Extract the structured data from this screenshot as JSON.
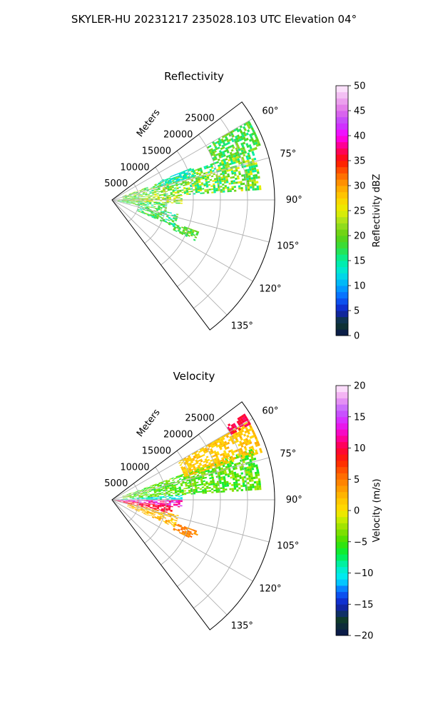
{
  "figure_title": "SKYLER-HU  20231217  235028.103 UTC Elevation 04°",
  "chart_data": [
    {
      "type": "heatmap",
      "title": "Reflectivity",
      "coordinate_system": "polar sector (azimuth vs range)",
      "range_axis_label": "Meters",
      "range_ticks": [
        5000,
        10000,
        15000,
        20000,
        25000
      ],
      "range_tick_labels": [
        "5000",
        "10000",
        "15000",
        "20000",
        "25000"
      ],
      "range_lim": [
        0,
        30000
      ],
      "azimuth_lim_deg": [
        53,
        143
      ],
      "azimuth_ticks_deg": [
        60,
        75,
        90,
        105,
        120,
        135
      ],
      "azimuth_tick_labels": [
        "60°",
        "75°",
        "90°",
        "105°",
        "120°",
        "135°"
      ],
      "grid": true,
      "colorbar": {
        "label": "Reflectivity dBZ",
        "vmin": 0,
        "vmax": 50,
        "ticks": [
          0,
          5,
          10,
          15,
          20,
          25,
          30,
          35,
          40,
          45,
          50
        ],
        "tick_labels": [
          "0",
          "5",
          "10",
          "15",
          "20",
          "25",
          "30",
          "35",
          "40",
          "45",
          "50"
        ],
        "stops": [
          [
            0,
            "#0a1450"
          ],
          [
            2.5,
            "#0f3a2a"
          ],
          [
            5,
            "#1020c0"
          ],
          [
            7.5,
            "#0a60ff"
          ],
          [
            10,
            "#00aaff"
          ],
          [
            12.5,
            "#00e5e0"
          ],
          [
            15,
            "#00f0a0"
          ],
          [
            17.5,
            "#30e040"
          ],
          [
            20,
            "#60d010"
          ],
          [
            22.5,
            "#a0e020"
          ],
          [
            25,
            "#e8f000"
          ],
          [
            27.5,
            "#ffd000"
          ],
          [
            30,
            "#ffa000"
          ],
          [
            32.5,
            "#ff6000"
          ],
          [
            35,
            "#ff1000"
          ],
          [
            37.5,
            "#ff0070"
          ],
          [
            40,
            "#ff00ff"
          ],
          [
            42.5,
            "#c040ff"
          ],
          [
            45,
            "#e070e8"
          ],
          [
            47.5,
            "#f0b0f0"
          ],
          [
            50,
            "#fff0ff"
          ]
        ]
      },
      "echo_regions": [
        {
          "az": [
            70,
            86
          ],
          "r": [
            2000,
            27500
          ],
          "value": [
            14,
            26
          ]
        },
        {
          "az": [
            86,
            93
          ],
          "r": [
            0,
            13000
          ],
          "value": [
            17,
            27
          ]
        },
        {
          "az": [
            93,
            102
          ],
          "r": [
            1000,
            10000
          ],
          "value": [
            13,
            22
          ]
        },
        {
          "az": [
            102,
            113
          ],
          "r": [
            5000,
            12500
          ],
          "value": [
            12,
            22
          ]
        },
        {
          "az": [
            110,
            116
          ],
          "r": [
            12500,
            17000
          ],
          "value": [
            16,
            22
          ]
        },
        {
          "az": [
            60,
            70
          ],
          "r": [
            20000,
            29000
          ],
          "value": [
            15,
            22
          ]
        },
        {
          "az": [
            68,
            74
          ],
          "r": [
            9000,
            16000
          ],
          "value": [
            11,
            16
          ]
        }
      ]
    },
    {
      "type": "heatmap",
      "title": "Velocity",
      "coordinate_system": "polar sector (azimuth vs range)",
      "range_axis_label": "Meters",
      "range_ticks": [
        5000,
        10000,
        15000,
        20000,
        25000
      ],
      "range_tick_labels": [
        "5000",
        "10000",
        "15000",
        "20000",
        "25000"
      ],
      "range_lim": [
        0,
        30000
      ],
      "azimuth_lim_deg": [
        53,
        143
      ],
      "azimuth_ticks_deg": [
        60,
        75,
        90,
        105,
        120,
        135
      ],
      "azimuth_tick_labels": [
        "60°",
        "75°",
        "90°",
        "105°",
        "120°",
        "135°"
      ],
      "grid": true,
      "colorbar": {
        "label": "Velocity (m/s)",
        "vmin": -20,
        "vmax": 20,
        "ticks": [
          -20,
          -15,
          -10,
          -5,
          0,
          5,
          10,
          15,
          20
        ],
        "tick_labels": [
          "−20",
          "−15",
          "−10",
          "−5",
          "0",
          "5",
          "10",
          "15",
          "20"
        ],
        "stops": [
          [
            -20,
            "#0a1450"
          ],
          [
            -17.5,
            "#0f3a2a"
          ],
          [
            -15,
            "#1020c0"
          ],
          [
            -13,
            "#0a60ff"
          ],
          [
            -11,
            "#00e8ff"
          ],
          [
            -9,
            "#00f0c0"
          ],
          [
            -7,
            "#00f040"
          ],
          [
            -5,
            "#40e000"
          ],
          [
            -3,
            "#90e000"
          ],
          [
            -1,
            "#d8f000"
          ],
          [
            0,
            "#ffe000"
          ],
          [
            2,
            "#ffc000"
          ],
          [
            4,
            "#ff9000"
          ],
          [
            6,
            "#ff6000"
          ],
          [
            8,
            "#ff2000"
          ],
          [
            10,
            "#ff0040"
          ],
          [
            12,
            "#ff00b0"
          ],
          [
            14,
            "#e020ff"
          ],
          [
            16,
            "#c060ff"
          ],
          [
            18,
            "#f0a0f0"
          ],
          [
            20,
            "#fff0ff"
          ]
        ]
      },
      "echo_regions": [
        {
          "az": [
            70,
            86
          ],
          "r": [
            2000,
            27500
          ],
          "value": [
            -7,
            -2
          ]
        },
        {
          "az": [
            60,
            72
          ],
          "r": [
            14000,
            29000
          ],
          "value": [
            0,
            3
          ]
        },
        {
          "az": [
            86,
            90
          ],
          "r": [
            0,
            13000
          ],
          "value": [
            -12,
            -8
          ]
        },
        {
          "az": [
            90,
            96
          ],
          "r": [
            0,
            13000
          ],
          "value": [
            10,
            16
          ]
        },
        {
          "az": [
            96,
            103
          ],
          "r": [
            0,
            11000
          ],
          "value": [
            8,
            11
          ]
        },
        {
          "az": [
            103,
            113
          ],
          "r": [
            3000,
            12500
          ],
          "value": [
            0,
            4
          ]
        },
        {
          "az": [
            110,
            116
          ],
          "r": [
            12500,
            17000
          ],
          "value": [
            3,
            6
          ]
        },
        {
          "az": [
            57,
            61
          ],
          "r": [
            25000,
            29000
          ],
          "value": [
            9,
            11
          ]
        }
      ]
    }
  ]
}
